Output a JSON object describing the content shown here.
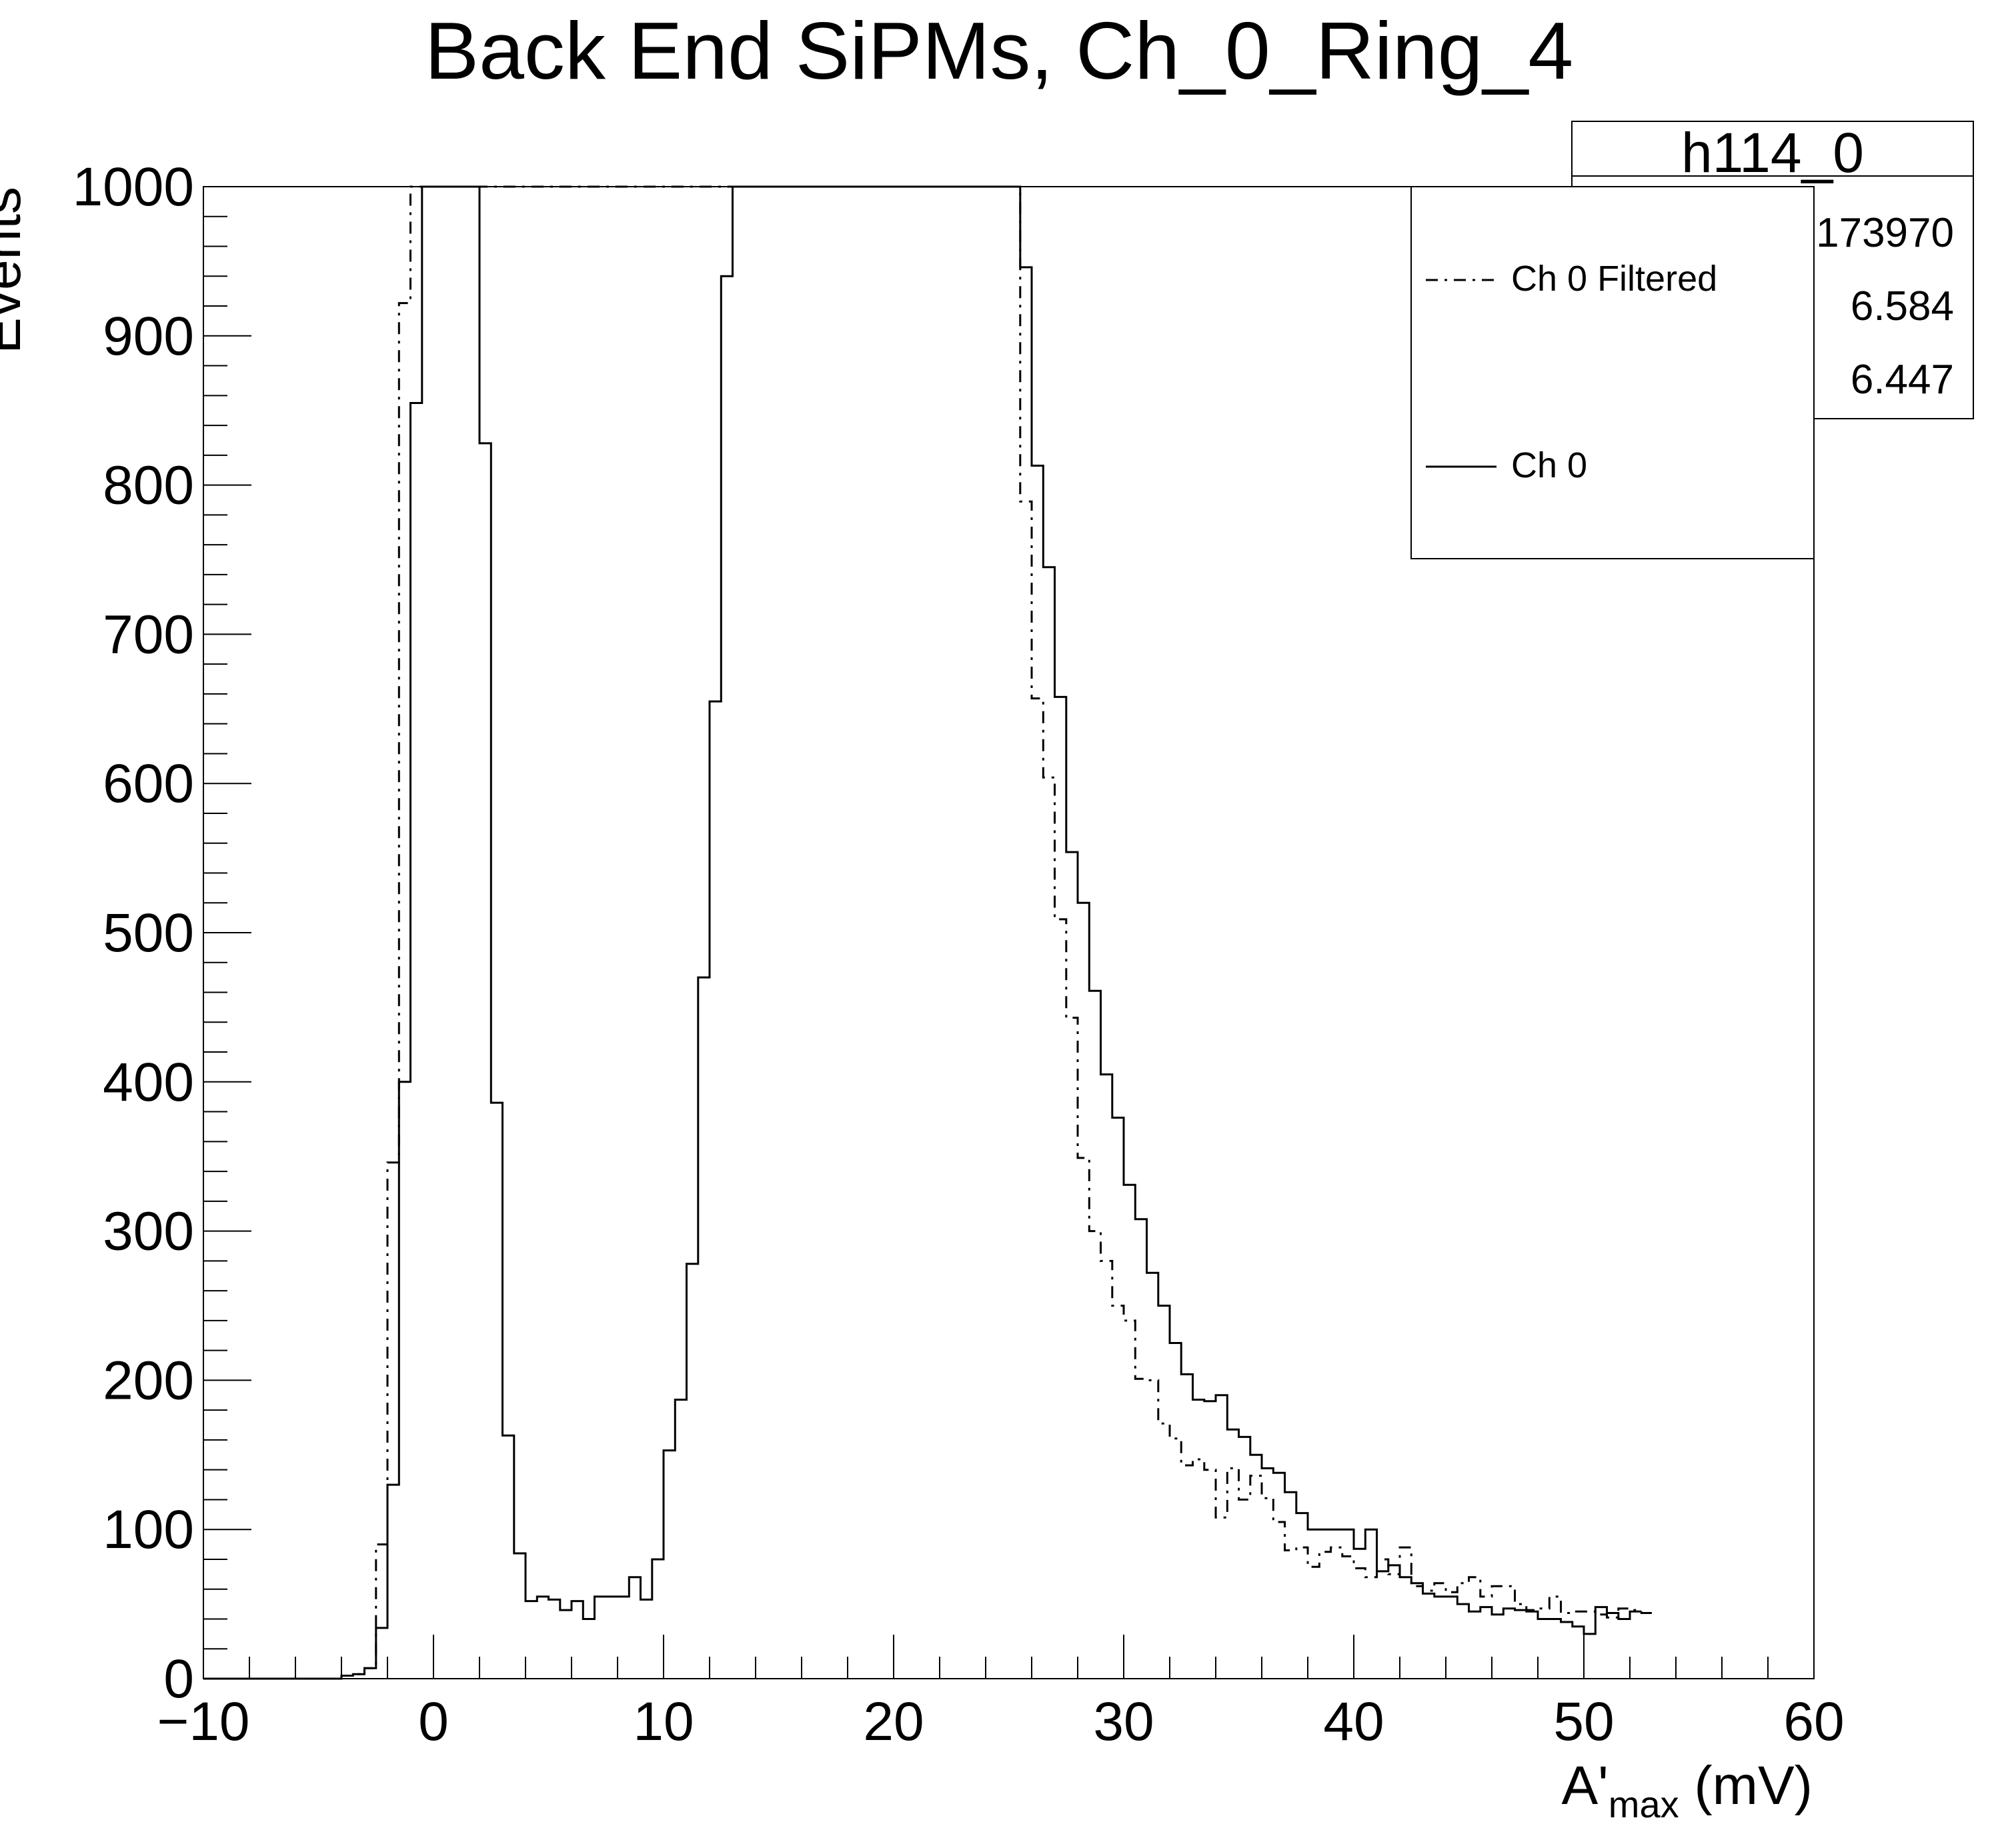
{
  "chart_data": {
    "type": "line",
    "title": "Back End SiPMs, Ch_0_Ring_4",
    "xlabel": "A'",
    "xlabel_sub": "max",
    "xlabel_unit": " (mV)",
    "ylabel": "Events",
    "xlim": [
      -10,
      60
    ],
    "ylim": [
      0,
      1000
    ],
    "x_ticks": [
      "−10",
      "0",
      "10",
      "20",
      "30",
      "40",
      "50",
      "60"
    ],
    "y_ticks": [
      "0",
      "100",
      "200",
      "300",
      "400",
      "500",
      "600",
      "700",
      "800",
      "900",
      "1000"
    ],
    "bin_width": 0.5,
    "bin_start": -10,
    "stats_box": {
      "name": "h114_0",
      "entries": "173970",
      "mean": "6.584",
      "std_dev": "6.447"
    },
    "legend": {
      "position": "top-right",
      "entries": [
        "Ch 0 Filtered",
        "Ch 0"
      ]
    },
    "series": [
      {
        "name": "Ch 0",
        "style": "solid",
        "values": [
          0,
          0,
          0,
          0,
          0,
          0,
          0,
          0,
          0,
          0,
          0,
          0,
          2,
          3,
          7,
          34,
          130,
          400,
          855,
          1000,
          1000,
          1000,
          1000,
          1000,
          828,
          386,
          163,
          84,
          52,
          55,
          53,
          46,
          52,
          40,
          55,
          55,
          55,
          68,
          53,
          80,
          153,
          187,
          278,
          470,
          655,
          940,
          1000,
          1000,
          1000,
          1000,
          1000,
          1000,
          1000,
          1000,
          1000,
          1000,
          1000,
          1000,
          1000,
          1000,
          1000,
          1000,
          1000,
          1000,
          1000,
          1000,
          1000,
          1000,
          1000,
          1000,
          1000,
          946,
          813,
          745,
          658,
          554,
          520,
          461,
          405,
          376,
          331,
          308,
          272,
          250,
          225,
          204,
          187,
          186,
          190,
          167,
          162,
          150,
          141,
          138,
          125,
          111,
          100,
          100,
          100,
          100,
          87,
          100,
          72,
          76,
          68,
          64,
          57,
          55,
          55,
          50,
          45,
          48,
          43,
          47,
          46,
          45,
          40,
          40,
          38,
          35,
          30,
          48,
          44,
          40,
          45
        ]
      },
      {
        "name": "Ch 0 Filtered",
        "style": "dash-dot",
        "values": [
          0,
          0,
          0,
          0,
          0,
          0,
          0,
          0,
          0,
          0,
          0,
          0,
          2,
          3,
          7,
          90,
          346,
          922,
          1000,
          1000,
          1000,
          1000,
          1000,
          1000,
          1000,
          1000,
          1000,
          1000,
          1000,
          1000,
          1000,
          1000,
          1000,
          1000,
          1000,
          1000,
          1000,
          1000,
          1000,
          1000,
          1000,
          1000,
          1000,
          1000,
          1000,
          1000,
          1000,
          1000,
          1000,
          1000,
          1000,
          1000,
          1000,
          1000,
          1000,
          1000,
          1000,
          1000,
          1000,
          1000,
          1000,
          1000,
          1000,
          1000,
          1000,
          1000,
          1000,
          1000,
          1000,
          1000,
          1000,
          789,
          657,
          604,
          509,
          443,
          349,
          300,
          280,
          250,
          240,
          201,
          200,
          171,
          161,
          143,
          147,
          140,
          108,
          141,
          120,
          136,
          121,
          105,
          86,
          88,
          75,
          85,
          88,
          82,
          74,
          68,
          80,
          70,
          88,
          62,
          59,
          64,
          58,
          64,
          68,
          55,
          62,
          62,
          50,
          46,
          47,
          55,
          44,
          45,
          45,
          43,
          41,
          47,
          46,
          44
        ]
      }
    ]
  }
}
